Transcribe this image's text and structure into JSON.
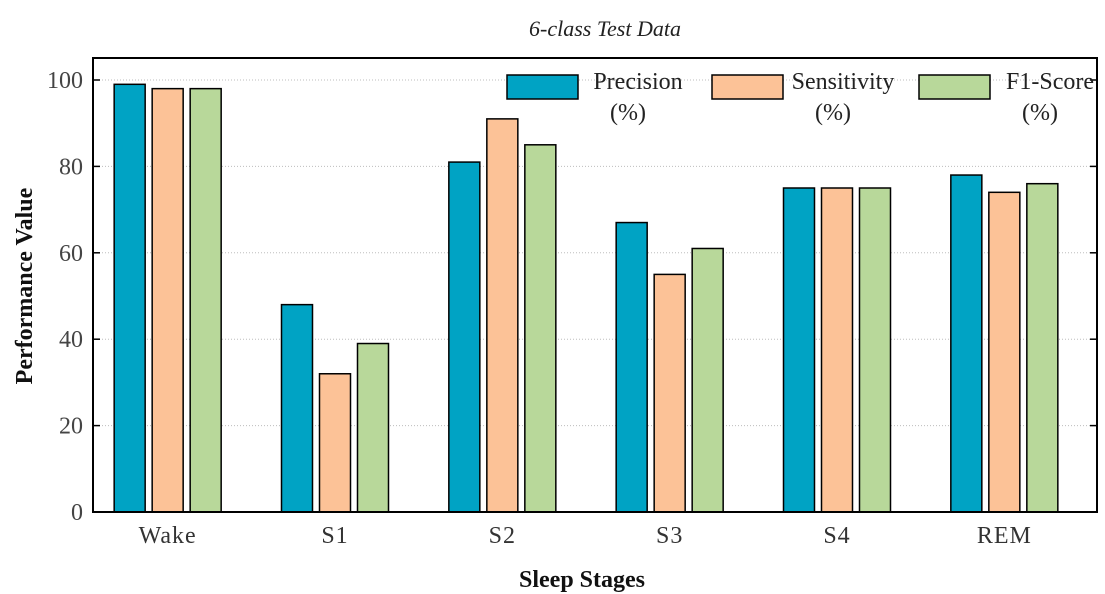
{
  "chart_data": {
    "type": "bar",
    "title": "6-class Test Data",
    "xlabel": "Sleep Stages",
    "ylabel": "Performance Value",
    "categories": [
      "Wake",
      "S1",
      "S2",
      "S3",
      "S4",
      "REM"
    ],
    "ylim": [
      0,
      100
    ],
    "yticks": [
      0,
      20,
      40,
      60,
      80,
      100
    ],
    "grid": true,
    "legend_position": "top-right",
    "series": [
      {
        "name": [
          "Precision",
          "(%)"
        ],
        "color": "#00a3c4",
        "values": [
          99,
          48,
          81,
          67,
          75,
          78
        ]
      },
      {
        "name": [
          "Sensitivity",
          "(%)"
        ],
        "color": "#fcc297",
        "values": [
          98,
          32,
          91,
          55,
          75,
          74
        ]
      },
      {
        "name": [
          "F1-Score",
          "(%)"
        ],
        "color": "#b8d89a",
        "values": [
          98,
          39,
          85,
          61,
          75,
          76
        ]
      }
    ]
  }
}
